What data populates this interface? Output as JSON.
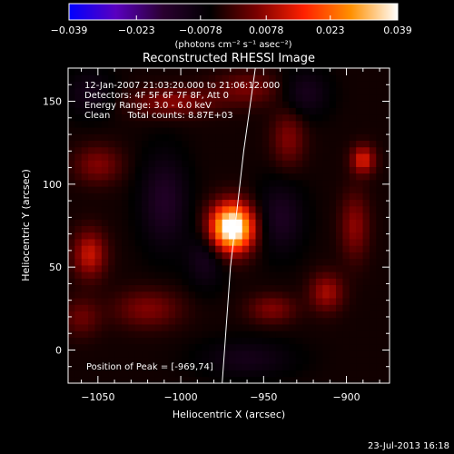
{
  "chart_data": {
    "type": "heatmap",
    "title": "Reconstructed RHESSI Image",
    "xlabel": "Heliocentric X (arcsec)",
    "ylabel": "Heliocentric Y (arcsec)",
    "xlim": [
      -1068,
      -874
    ],
    "ylim": [
      -20,
      170
    ],
    "x_ticks": [
      -1050,
      -1000,
      -950,
      -900
    ],
    "x_tick_labels": [
      "−1050",
      "−1000",
      "−950",
      "−900"
    ],
    "y_ticks": [
      0,
      50,
      100,
      150
    ],
    "y_tick_labels": [
      "0",
      "50",
      "100",
      "150"
    ],
    "colorbar": {
      "min": -0.039,
      "max": 0.039,
      "ticks": [
        -0.039,
        -0.023,
        -0.0078,
        0.0078,
        0.023,
        0.039
      ],
      "tick_labels": [
        "−0.039",
        "−0.023",
        "−0.0078",
        "0.0078",
        "0.023",
        "0.039"
      ],
      "unit_label": "(photons cm⁻² s⁻¹ asec⁻²)",
      "colors": [
        "#0000ff",
        "#5a00c0",
        "#2a0030",
        "#000000",
        "#7a0000",
        "#ff2000",
        "#ff9000",
        "#ffffff"
      ]
    },
    "annotations": [
      "12-Jan-2007 21:03:20.000 to 21:06:12.000",
      "Detectors: 4F 5F 6F 7F 8F, Att 0",
      "Energy Range: 3.0 - 6.0 keV",
      "Clean      Total counts: 8.87E+03"
    ],
    "peak_label": "Position of Peak = [-969,74]",
    "peak": {
      "x": -969,
      "y": 74
    },
    "limb_line": [
      [
        -975,
        -20
      ],
      [
        -970,
        50
      ],
      [
        -962,
        120
      ],
      [
        -955,
        170
      ]
    ],
    "sources": [
      {
        "x": -969,
        "y": 74,
        "sx": 9,
        "sy": 10,
        "amp": 0.05
      },
      {
        "x": -1055,
        "y": 58,
        "sx": 7,
        "sy": 10,
        "amp": 0.016
      },
      {
        "x": -1050,
        "y": 112,
        "sx": 10,
        "sy": 8,
        "amp": 0.01
      },
      {
        "x": -1005,
        "y": 150,
        "sx": 18,
        "sy": 6,
        "amp": 0.011
      },
      {
        "x": -960,
        "y": 158,
        "sx": 14,
        "sy": 7,
        "amp": 0.009
      },
      {
        "x": -935,
        "y": 128,
        "sx": 7,
        "sy": 12,
        "amp": 0.01
      },
      {
        "x": -890,
        "y": 115,
        "sx": 5,
        "sy": 6,
        "amp": 0.018
      },
      {
        "x": -895,
        "y": 75,
        "sx": 6,
        "sy": 14,
        "amp": 0.011
      },
      {
        "x": -912,
        "y": 35,
        "sx": 7,
        "sy": 8,
        "amp": 0.013
      },
      {
        "x": -945,
        "y": 25,
        "sx": 10,
        "sy": 6,
        "amp": 0.01
      },
      {
        "x": -1020,
        "y": 25,
        "sx": 14,
        "sy": 8,
        "amp": 0.01
      },
      {
        "x": -1060,
        "y": 20,
        "sx": 8,
        "sy": 8,
        "amp": 0.008
      },
      {
        "x": -1010,
        "y": 90,
        "sx": 10,
        "sy": 20,
        "amp": -0.01
      },
      {
        "x": -985,
        "y": 55,
        "sx": 8,
        "sy": 12,
        "amp": -0.008
      },
      {
        "x": -940,
        "y": 80,
        "sx": 10,
        "sy": 15,
        "amp": -0.009
      },
      {
        "x": -925,
        "y": 155,
        "sx": 10,
        "sy": 10,
        "amp": -0.008
      },
      {
        "x": -1055,
        "y": 155,
        "sx": 10,
        "sy": 10,
        "amp": -0.007
      },
      {
        "x": -960,
        "y": -5,
        "sx": 20,
        "sy": 8,
        "amp": -0.007
      }
    ]
  },
  "footer": {
    "timestamp": "23-Jul-2013 16:18"
  }
}
